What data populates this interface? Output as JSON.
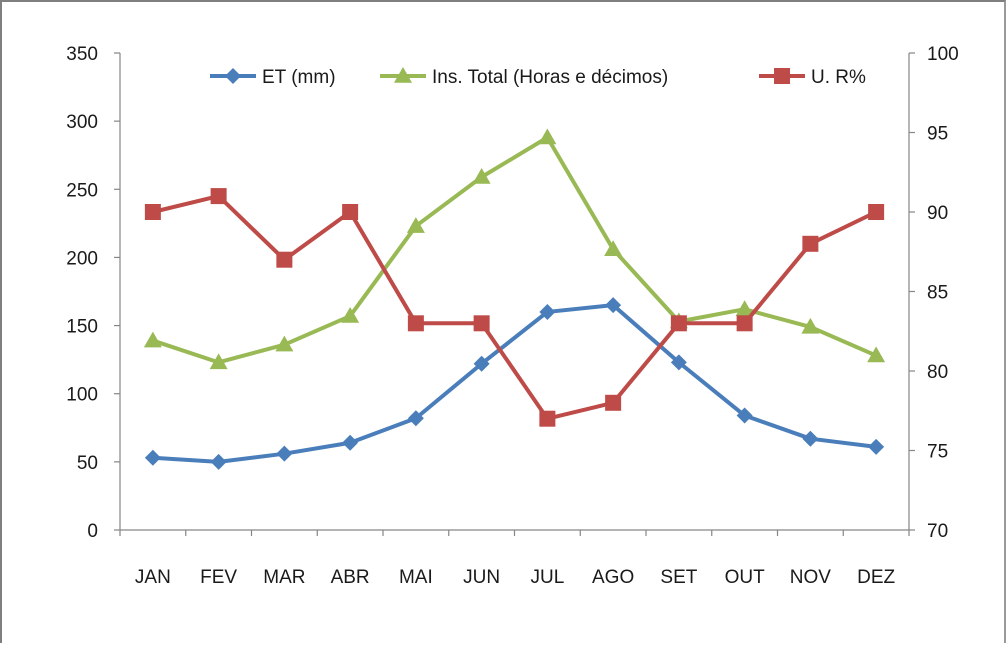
{
  "chart_data": {
    "type": "line",
    "categories": [
      "JAN",
      "FEV",
      "MAR",
      "ABR",
      "MAI",
      "JUN",
      "JUL",
      "AGO",
      "SET",
      "OUT",
      "NOV",
      "DEZ"
    ],
    "y_left": {
      "range": [
        0,
        350
      ],
      "ticks": [
        "0",
        "50",
        "100",
        "150",
        "200",
        "250",
        "300",
        "350"
      ]
    },
    "y_right": {
      "range": [
        70,
        100
      ],
      "ticks": [
        "70",
        "75",
        "80",
        "85",
        "90",
        "95",
        "100"
      ]
    },
    "legend_position": "top",
    "grid": false,
    "series": [
      {
        "name": "ET (mm)",
        "axis": "left",
        "color": "#4a7ebb",
        "marker": "diamond",
        "values": [
          53,
          50,
          56,
          64,
          82,
          122,
          160,
          165,
          123,
          84,
          67,
          61
        ]
      },
      {
        "name": "Ins. Total (Horas e décimos)",
        "axis": "left",
        "color": "#98b954",
        "marker": "triangle",
        "values": [
          139,
          123,
          136,
          157,
          223,
          259,
          288,
          206,
          153,
          162,
          149,
          128
        ]
      },
      {
        "name": "U. R%",
        "axis": "right",
        "color": "#be4b48",
        "marker": "square",
        "values": [
          90,
          91,
          87,
          90,
          83,
          83,
          77,
          78,
          83,
          83,
          88,
          90
        ]
      }
    ]
  }
}
